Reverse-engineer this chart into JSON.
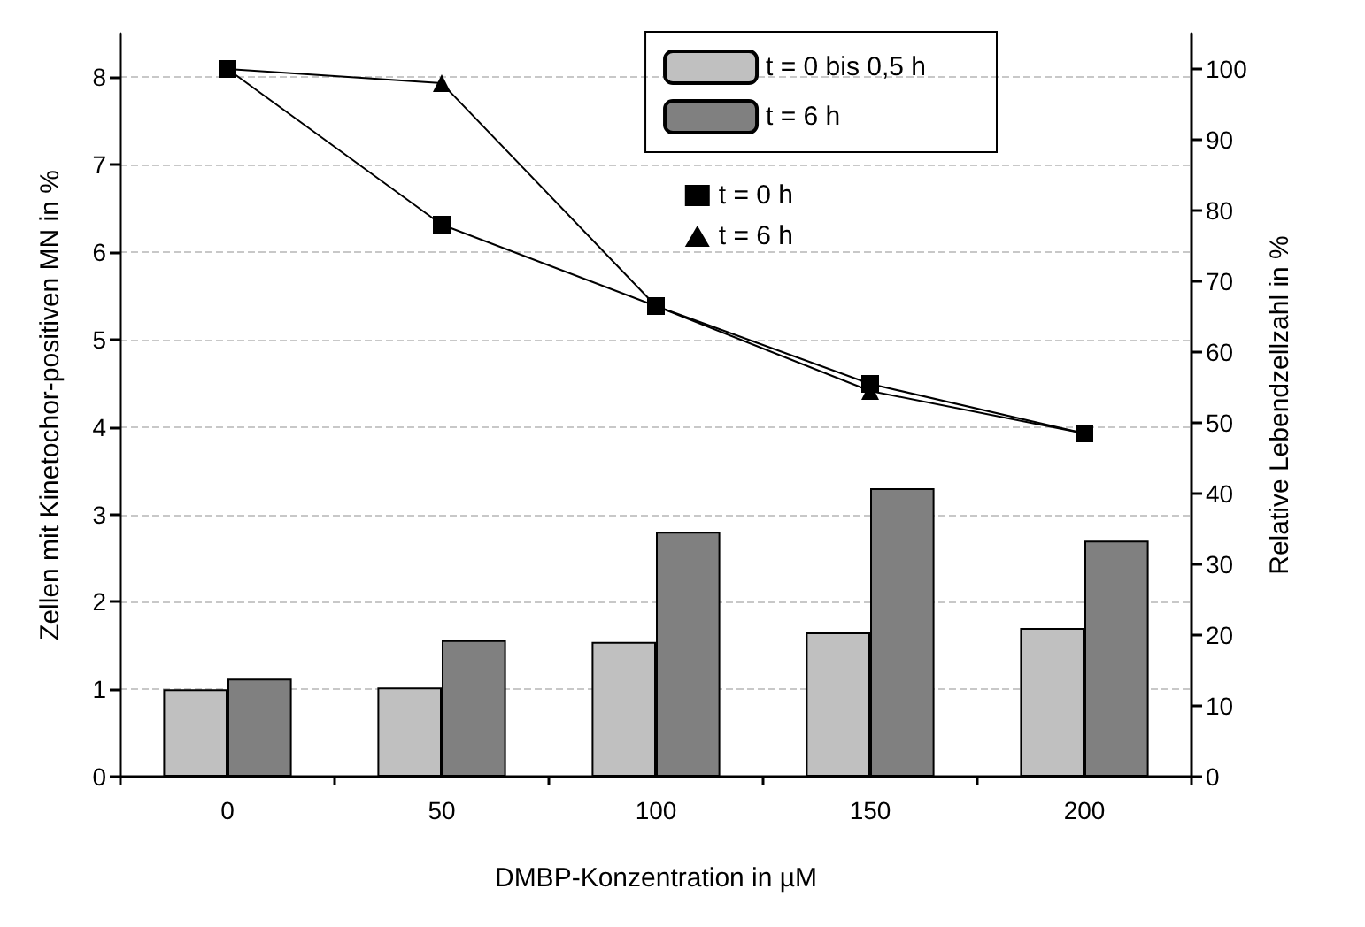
{
  "chart_data": {
    "type": "bar",
    "xlabel": "DMBP-Konzentration in µM",
    "ylabel": "Zellen mit Kinetochor-positiven MN in %",
    "y2label": "Relative Lebendzellzahl in %",
    "categories": [
      "0",
      "50",
      "100",
      "150",
      "200"
    ],
    "ylim": [
      0,
      8.5
    ],
    "yticks": [
      0,
      1,
      2,
      3,
      4,
      5,
      6,
      7,
      8
    ],
    "y2lim": [
      0,
      105
    ],
    "y2ticks": [
      0,
      10,
      20,
      30,
      40,
      50,
      60,
      70,
      80,
      90,
      100
    ],
    "grid": "y",
    "legend": "top right",
    "line_style": "solid",
    "series": [
      {
        "name": "t = 0 bis 0,5 h",
        "color": "#c0c0c0",
        "values": [
          1.0,
          1.02,
          1.54,
          1.65,
          1.7
        ]
      },
      {
        "name": "t = 6 h",
        "color": "#808080",
        "values": [
          1.12,
          1.56,
          2.8,
          3.3,
          2.7
        ]
      },
      {
        "name": "t = 0 h",
        "type": "line",
        "axis": "y2",
        "marker": "square",
        "color": "#000000",
        "values": [
          100,
          78,
          66.5,
          55.5,
          48.5
        ]
      },
      {
        "name": "t = 6 h",
        "type": "line",
        "axis": "y2",
        "marker": "triangle",
        "color": "#000000",
        "values": [
          100,
          98,
          66.5,
          54.5,
          48.5
        ]
      }
    ]
  }
}
